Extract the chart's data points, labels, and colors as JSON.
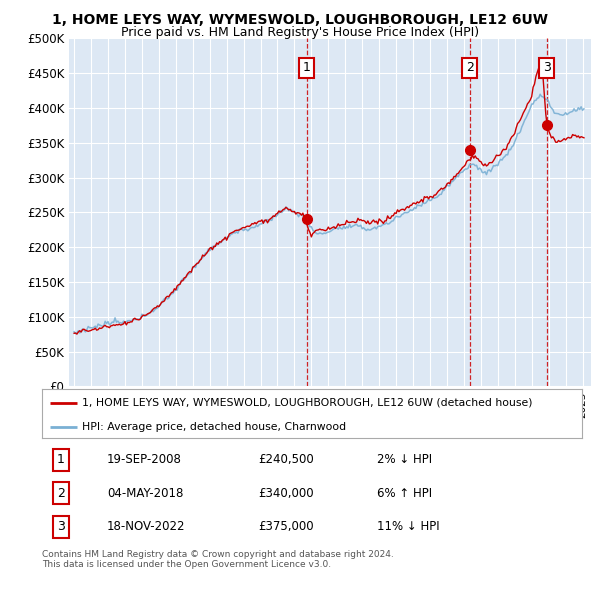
{
  "title": "1, HOME LEYS WAY, WYMESWOLD, LOUGHBOROUGH, LE12 6UW",
  "subtitle": "Price paid vs. HM Land Registry's House Price Index (HPI)",
  "ylim": [
    0,
    500000
  ],
  "yticks": [
    0,
    50000,
    100000,
    150000,
    200000,
    250000,
    300000,
    350000,
    400000,
    450000,
    500000
  ],
  "ytick_labels": [
    "£0",
    "£50K",
    "£100K",
    "£150K",
    "£200K",
    "£250K",
    "£300K",
    "£350K",
    "£400K",
    "£450K",
    "£500K"
  ],
  "xlim_start": 1994.7,
  "xlim_end": 2025.5,
  "plot_bg_color": "#dde8f4",
  "red_color": "#cc0000",
  "blue_color": "#7ab0d4",
  "sale_dates_year": [
    2008.72,
    2018.34,
    2022.88
  ],
  "sale_prices": [
    240500,
    340000,
    375000
  ],
  "sale_labels": [
    "1",
    "2",
    "3"
  ],
  "sale_date_strs": [
    "19-SEP-2008",
    "04-MAY-2018",
    "18-NOV-2022"
  ],
  "sale_price_strs": [
    "£240,500",
    "£340,000",
    "£375,000"
  ],
  "sale_hpi_strs": [
    "2% ↓ HPI",
    "6% ↑ HPI",
    "11% ↓ HPI"
  ],
  "legend_line1": "1, HOME LEYS WAY, WYMESWOLD, LOUGHBOROUGH, LE12 6UW (detached house)",
  "legend_line2": "HPI: Average price, detached house, Charnwood",
  "footer": "Contains HM Land Registry data © Crown copyright and database right 2024.\nThis data is licensed under the Open Government Licence v3.0."
}
